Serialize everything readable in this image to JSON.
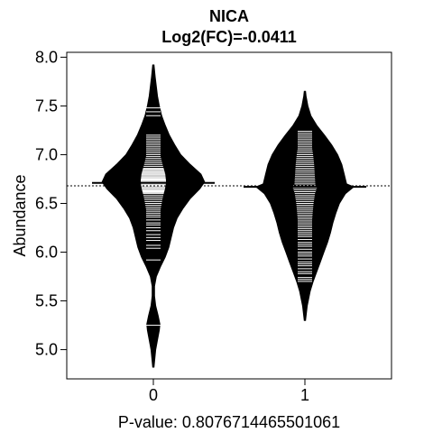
{
  "chart_data": {
    "type": "beanplot",
    "title": "NICA",
    "subtitle": "Log2(FC)=-0.0411",
    "xlabel": "P-value: 0.807671446550106​1",
    "ylabel": "Abundance",
    "ylim": [
      4.7,
      8.05
    ],
    "yticks": [
      5.0,
      5.5,
      6.0,
      6.5,
      7.0,
      7.5,
      8.0
    ],
    "ytick_labels": [
      "5.0",
      "5.5",
      "6.0",
      "6.5",
      "7.0",
      "7.5",
      "8.0"
    ],
    "categories": [
      "0",
      "1"
    ],
    "overall_mean": 6.68,
    "groups": [
      {
        "label": "0",
        "mean": 6.71,
        "range": [
          4.82,
          7.92
        ],
        "density": [
          [
            4.82,
            0.01
          ],
          [
            5.0,
            0.04
          ],
          [
            5.1,
            0.07
          ],
          [
            5.2,
            0.1
          ],
          [
            5.26,
            0.11
          ],
          [
            5.35,
            0.08
          ],
          [
            5.45,
            0.04
          ],
          [
            5.55,
            0.02
          ],
          [
            5.65,
            0.02
          ],
          [
            5.75,
            0.05
          ],
          [
            5.85,
            0.12
          ],
          [
            5.95,
            0.2
          ],
          [
            6.05,
            0.26
          ],
          [
            6.15,
            0.3
          ],
          [
            6.25,
            0.34
          ],
          [
            6.35,
            0.4
          ],
          [
            6.45,
            0.5
          ],
          [
            6.55,
            0.62
          ],
          [
            6.65,
            0.78
          ],
          [
            6.72,
            0.86
          ],
          [
            6.8,
            0.8
          ],
          [
            6.9,
            0.62
          ],
          [
            7.0,
            0.46
          ],
          [
            7.1,
            0.36
          ],
          [
            7.2,
            0.27
          ],
          [
            7.3,
            0.2
          ],
          [
            7.4,
            0.14
          ],
          [
            7.5,
            0.1
          ],
          [
            7.6,
            0.07
          ],
          [
            7.7,
            0.05
          ],
          [
            7.8,
            0.03
          ],
          [
            7.92,
            0.01
          ]
        ],
        "points": [
          5.25,
          5.92,
          6.04,
          6.07,
          6.12,
          6.15,
          6.18,
          6.22,
          6.25,
          6.28,
          6.3,
          6.33,
          6.36,
          6.38,
          6.4,
          6.42,
          6.44,
          6.46,
          6.48,
          6.5,
          6.52,
          6.54,
          6.56,
          6.58,
          6.6,
          6.61,
          6.62,
          6.63,
          6.64,
          6.65,
          6.66,
          6.67,
          6.68,
          6.69,
          6.7,
          6.71,
          6.72,
          6.73,
          6.74,
          6.75,
          6.76,
          6.77,
          6.78,
          6.79,
          6.8,
          6.81,
          6.82,
          6.83,
          6.84,
          6.85,
          6.86,
          6.88,
          6.9,
          6.92,
          6.94,
          6.96,
          6.98,
          7.0,
          7.02,
          7.04,
          7.06,
          7.08,
          7.1,
          7.12,
          7.14,
          7.16,
          7.18,
          7.2,
          7.4,
          7.44,
          7.48
        ]
      },
      {
        "label": "1",
        "mean": 6.67,
        "range": [
          5.3,
          7.65
        ],
        "density": [
          [
            5.3,
            0.01
          ],
          [
            5.45,
            0.04
          ],
          [
            5.6,
            0.09
          ],
          [
            5.7,
            0.14
          ],
          [
            5.8,
            0.2
          ],
          [
            5.9,
            0.26
          ],
          [
            6.0,
            0.32
          ],
          [
            6.1,
            0.38
          ],
          [
            6.2,
            0.43
          ],
          [
            6.3,
            0.47
          ],
          [
            6.4,
            0.52
          ],
          [
            6.5,
            0.58
          ],
          [
            6.6,
            0.68
          ],
          [
            6.67,
            0.82
          ],
          [
            6.7,
            0.7
          ],
          [
            6.8,
            0.66
          ],
          [
            6.9,
            0.62
          ],
          [
            7.0,
            0.55
          ],
          [
            7.1,
            0.45
          ],
          [
            7.2,
            0.33
          ],
          [
            7.3,
            0.2
          ],
          [
            7.4,
            0.1
          ],
          [
            7.5,
            0.05
          ],
          [
            7.6,
            0.02
          ],
          [
            7.65,
            0.01
          ]
        ],
        "points": [
          5.7,
          5.72,
          5.74,
          5.78,
          5.8,
          5.83,
          5.86,
          5.88,
          5.9,
          5.93,
          5.96,
          5.98,
          6.0,
          6.03,
          6.06,
          6.08,
          6.1,
          6.13,
          6.16,
          6.18,
          6.2,
          6.22,
          6.24,
          6.26,
          6.28,
          6.3,
          6.32,
          6.34,
          6.36,
          6.38,
          6.4,
          6.42,
          6.44,
          6.46,
          6.48,
          6.5,
          6.52,
          6.54,
          6.56,
          6.58,
          6.6,
          6.62,
          6.64,
          6.66,
          6.68,
          6.7,
          6.72,
          6.74,
          6.76,
          6.78,
          6.8,
          6.82,
          6.84,
          6.86,
          6.88,
          6.9,
          6.92,
          6.94,
          6.96,
          6.98,
          7.0,
          7.02,
          7.04,
          7.06,
          7.08,
          7.1,
          7.12,
          7.14,
          7.16,
          7.18,
          7.2,
          7.22,
          7.24
        ]
      }
    ],
    "colors": {
      "bean": "#000000",
      "line": "#ffffff",
      "frame": "#000000"
    }
  }
}
